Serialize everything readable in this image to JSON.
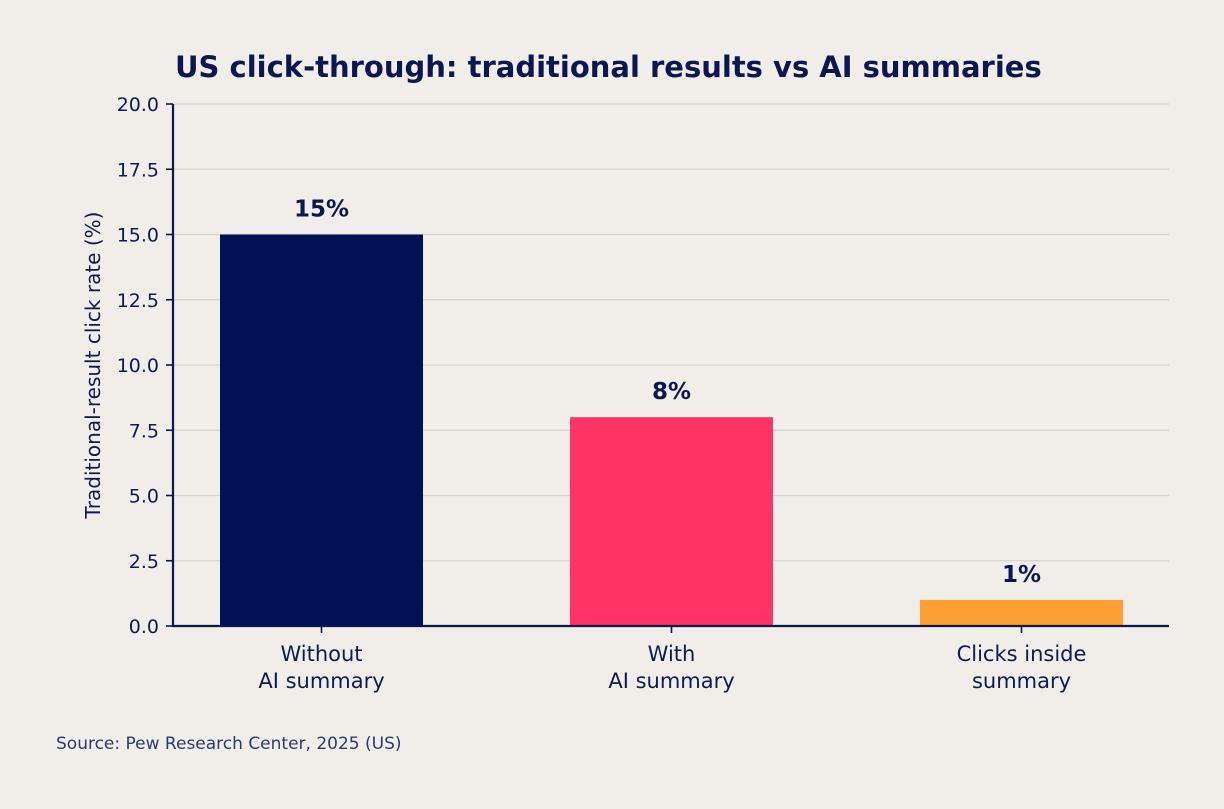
{
  "chart_data": {
    "type": "bar",
    "title": "US click-through: traditional results vs AI summaries",
    "ylabel": "Traditional-result click rate (%)",
    "xlabel": "",
    "ylim": [
      0,
      20
    ],
    "yticks": [
      "0.0",
      "2.5",
      "5.0",
      "7.5",
      "10.0",
      "12.5",
      "15.0",
      "17.5",
      "20.0"
    ],
    "grid": true,
    "categories": [
      [
        "Without",
        "AI summary"
      ],
      [
        "With",
        "AI summary"
      ],
      [
        "Clicks inside",
        "summary"
      ]
    ],
    "values": [
      15,
      8,
      1
    ],
    "data_labels": [
      "15%",
      "8%",
      "1%"
    ],
    "colors": [
      "#001251",
      "#ff3366",
      "#ff9f33"
    ]
  },
  "source": "Source: Pew Research Center, 2025 (US)"
}
